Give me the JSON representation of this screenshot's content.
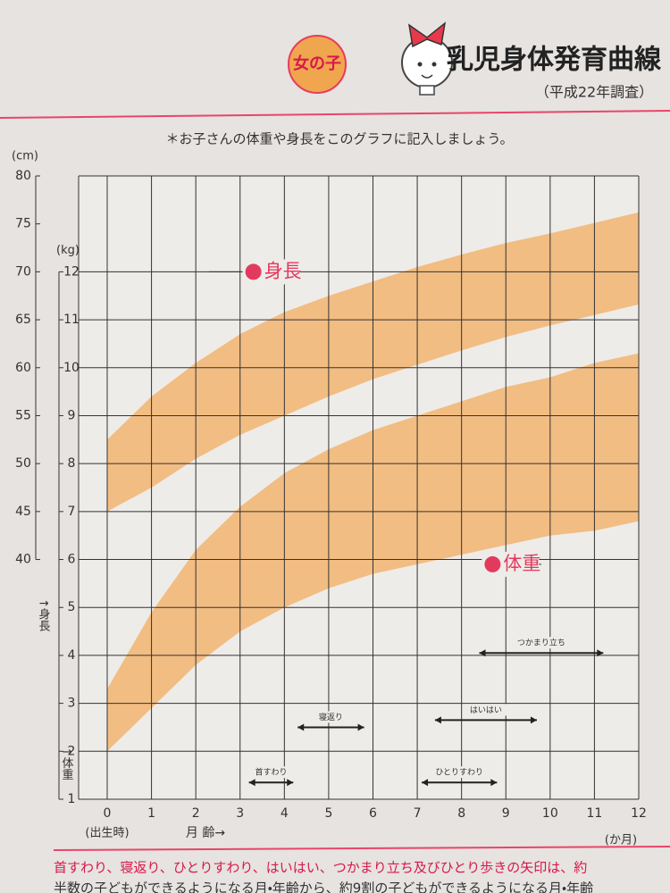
{
  "badge": "女の子",
  "title": "乳児身体発育曲線",
  "subtitle": "（平成22年調査）",
  "note": "＊お子さんの体重や身長をこのグラフに記入しましょう。",
  "footer": [
    "首すわり、寝返り、ひとりすわり、はいはい、つかまり立ち及びひとり歩きの矢印は、約",
    "半数の子どもができるようになる月・年齢から、約9割の子どもができるようになる月・年齢"
  ],
  "chart_data": {
    "type": "band",
    "y_unit": "(kg)",
    "y2_unit": "(cm)",
    "y_label": "↑体重",
    "y2_label": "↑身長",
    "x_label": "月 齢→",
    "x_start_label": "(出生時)",
    "x_end_label": "(か月)",
    "x": [
      0,
      1,
      2,
      3,
      4,
      5,
      6,
      7,
      8,
      9,
      10,
      11,
      12
    ],
    "xlim": [
      0,
      12
    ],
    "xticks": [
      0,
      1,
      2,
      3,
      4,
      5,
      6,
      7,
      8,
      9,
      10,
      11,
      12
    ],
    "ylim": [
      1,
      14
    ],
    "yticks": [
      1,
      2,
      3,
      4,
      5,
      6,
      7,
      8,
      9,
      10,
      11,
      12
    ],
    "y2lim": [
      15,
      80
    ],
    "y2ticks": [
      40,
      45,
      50,
      55,
      60,
      65,
      70,
      75,
      80
    ],
    "grid": true,
    "series": [
      {
        "name": "身長",
        "color": "#f2b877",
        "axis": "y2",
        "low": [
          45,
          47.5,
          50.5,
          53,
          55,
          57,
          58.8,
          60.3,
          61.8,
          63.2,
          64.4,
          65.5,
          66.6
        ],
        "high": [
          52.5,
          57,
          60.5,
          63.5,
          65.8,
          67.5,
          69,
          70.5,
          71.8,
          73,
          74,
          75.1,
          76.2
        ]
      },
      {
        "name": "体重",
        "color": "#f2b877",
        "low": [
          2,
          2.9,
          3.8,
          4.5,
          5,
          5.4,
          5.7,
          5.9,
          6.1,
          6.3,
          6.5,
          6.6,
          6.8
        ],
        "high": [
          3.3,
          4.9,
          6.2,
          7.1,
          7.8,
          8.3,
          8.7,
          9,
          9.3,
          9.6,
          9.8,
          10.1,
          10.3
        ]
      }
    ],
    "milestones": [
      {
        "label": "首すわり",
        "start": 3.2,
        "end": 4.2
      },
      {
        "label": "寝返り",
        "start": 4.3,
        "end": 5.8
      },
      {
        "label": "ひとりすわり",
        "start": 7.1,
        "end": 8.8
      },
      {
        "label": "はいはい",
        "start": 7.4,
        "end": 9.7
      },
      {
        "label": "つかまり立ち",
        "start": 8.4,
        "end": 11.2
      }
    ]
  }
}
